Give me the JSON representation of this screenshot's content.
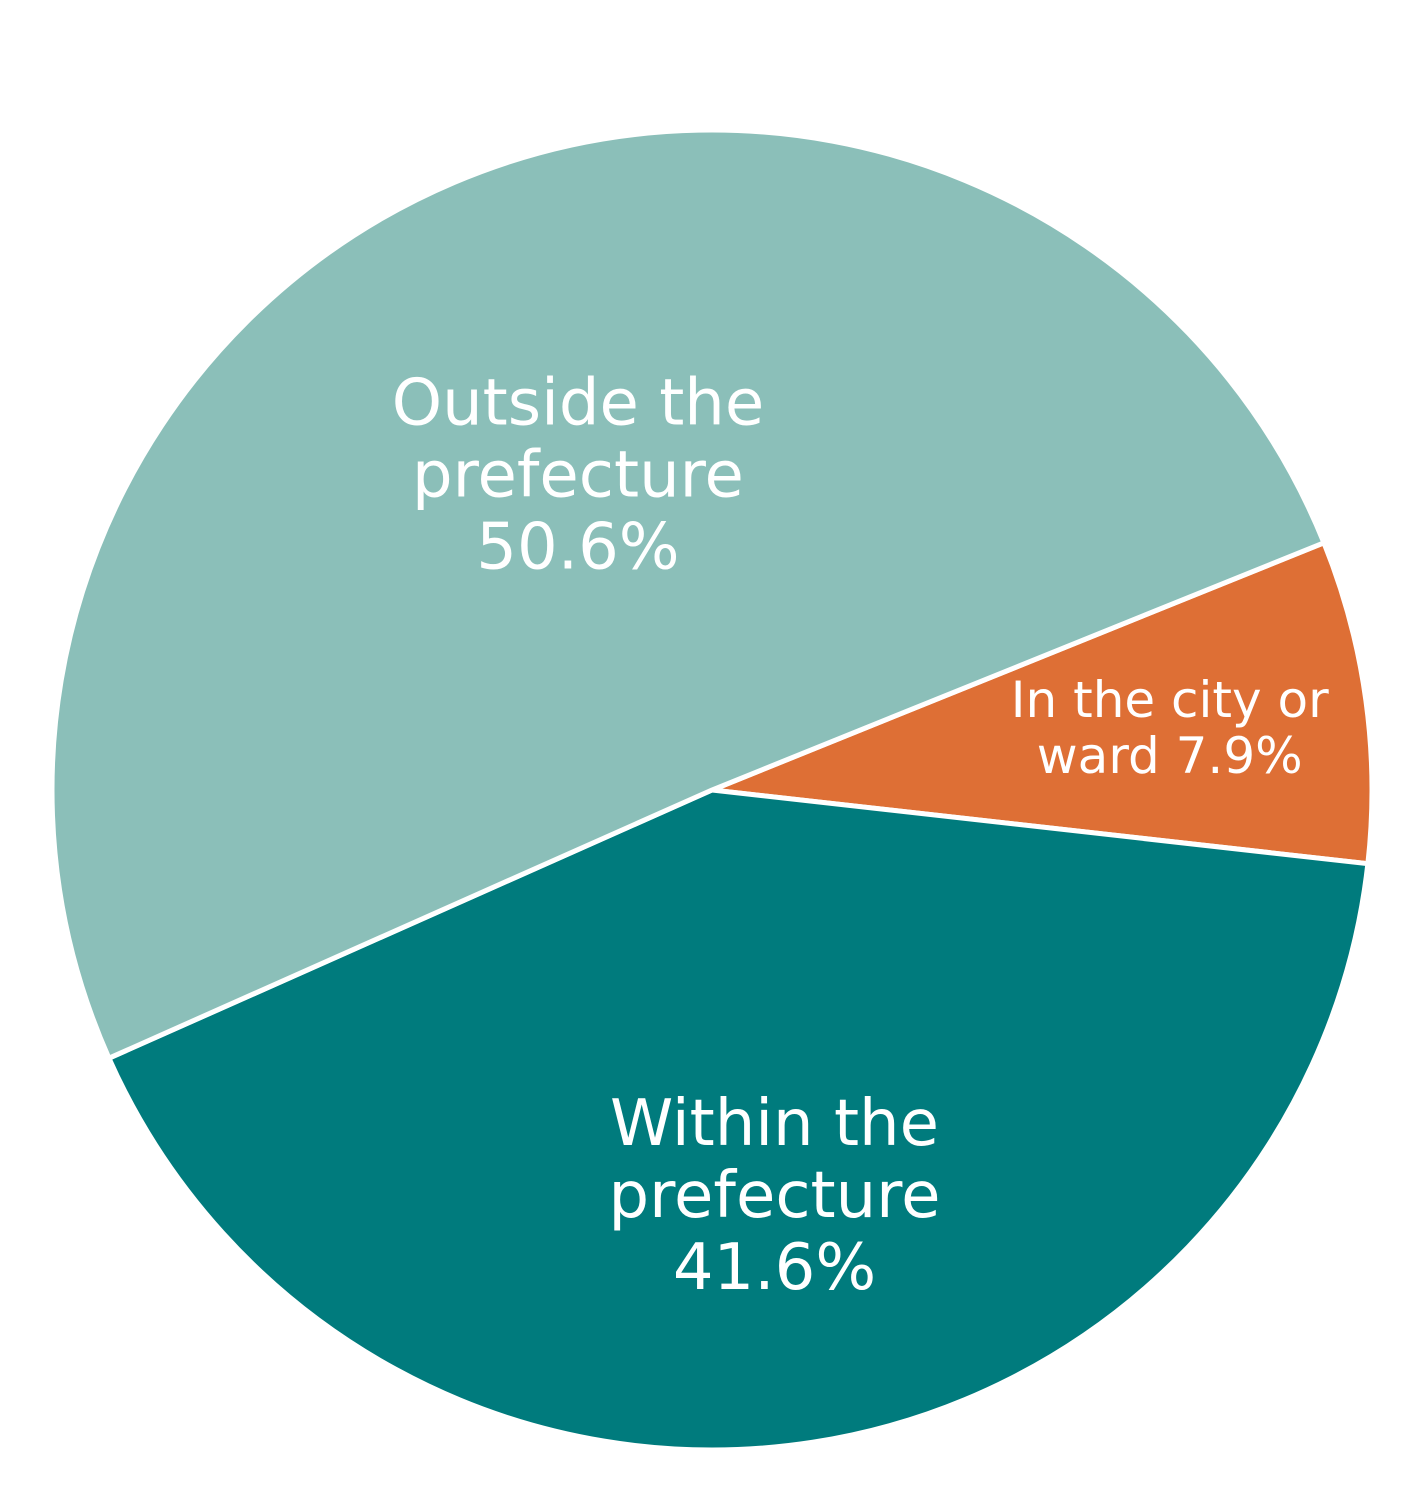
{
  "chart_data": {
    "type": "pie",
    "title": "",
    "slices": [
      {
        "name": "In the city or ward",
        "value": 7.9,
        "display": "7.9%",
        "label_lines": [
          "In the city or",
          "ward 7.9%"
        ],
        "color": "#DE6F35"
      },
      {
        "name": "Within the prefecture",
        "value": 41.6,
        "display": "41.6%",
        "label_lines": [
          "Within the",
          "prefecture",
          "41.6%"
        ],
        "color": "#007B7D"
      },
      {
        "name": "Outside the prefecture",
        "value": 50.6,
        "display": "50.6%",
        "label_lines": [
          "Outside the",
          "prefecture",
          "50.6%"
        ],
        "color": "#8BBFB9"
      }
    ],
    "legend": "none (labels inside slices)"
  }
}
